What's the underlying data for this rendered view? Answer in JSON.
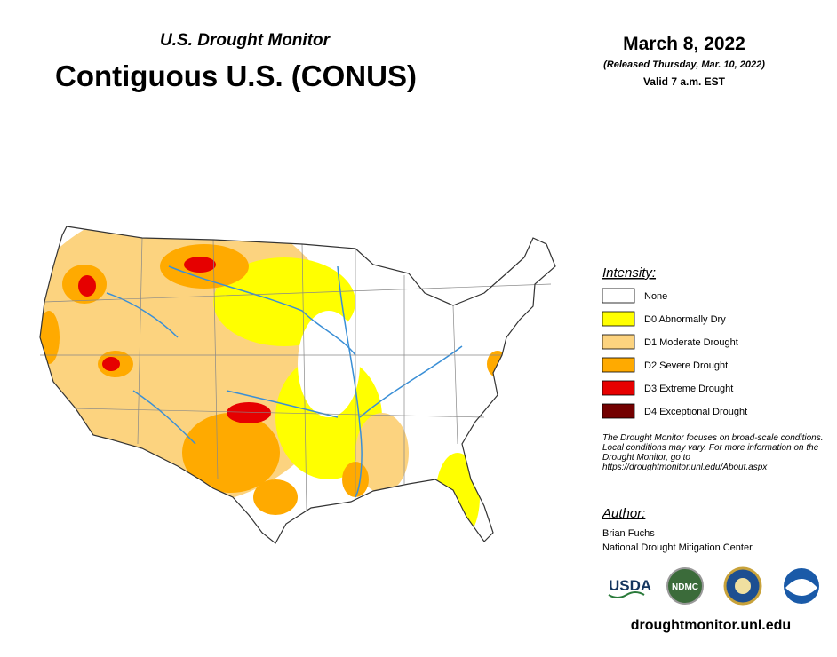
{
  "header": {
    "subtitle": "U.S. Drought Monitor",
    "title": "Contiguous U.S. (CONUS)",
    "date": "March 8, 2022",
    "released": "(Released Thursday, Mar. 10, 2022)",
    "valid": "Valid 7 a.m. EST"
  },
  "legend": {
    "title": "Intensity:",
    "items": [
      {
        "label": "None",
        "color": "#ffffff"
      },
      {
        "label": "D0 Abnormally Dry",
        "color": "#ffff00"
      },
      {
        "label": "D1 Moderate Drought",
        "color": "#fcd37f"
      },
      {
        "label": "D2 Severe Drought",
        "color": "#ffaa00"
      },
      {
        "label": "D3 Extreme Drought",
        "color": "#e60000"
      },
      {
        "label": "D4 Exceptional Drought",
        "color": "#730000"
      }
    ]
  },
  "note": "The Drought Monitor focuses on broad-scale conditions. Local conditions may vary. For more information on the Drought Monitor, go to https://droughtmonitor.unl.edu/About.aspx",
  "author": {
    "title": "Author:",
    "name": "Brian Fuchs",
    "org": "National Drought Mitigation Center"
  },
  "logos": [
    "USDA",
    "NDMC"
  ],
  "url": "droughtmonitor.unl.edu"
}
